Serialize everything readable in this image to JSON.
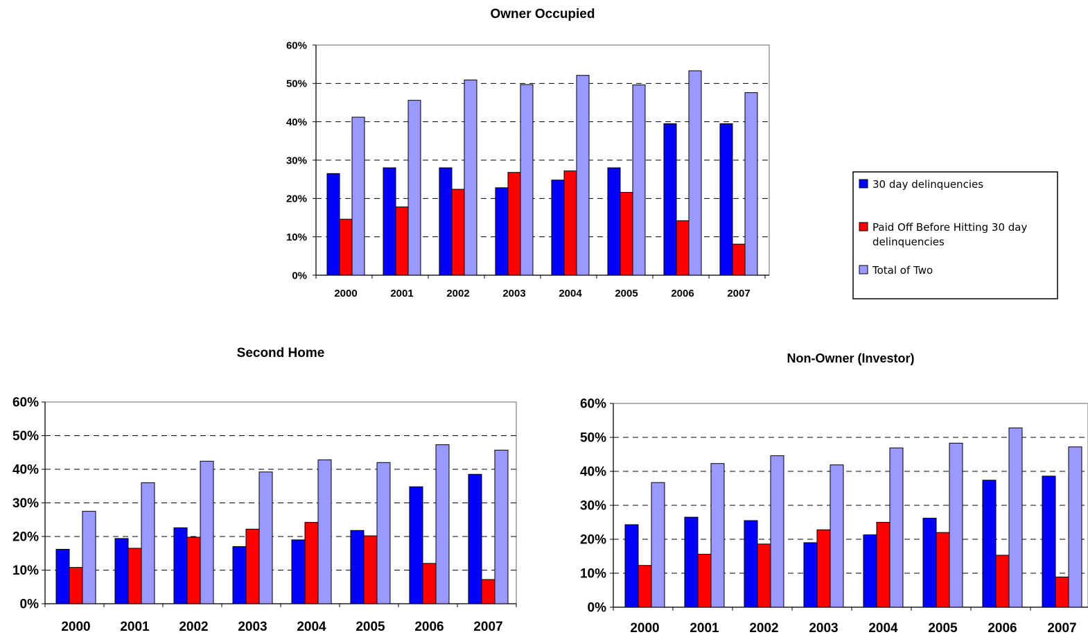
{
  "chart_data": [
    {
      "type": "bar",
      "title": "Owner Occupied",
      "categories": [
        "2000",
        "2001",
        "2002",
        "2003",
        "2004",
        "2005",
        "2006",
        "2007"
      ],
      "series": [
        {
          "name": "30 day delinquencies",
          "values": [
            26.5,
            28.0,
            28.0,
            22.8,
            24.8,
            28.0,
            39.5,
            39.5
          ]
        },
        {
          "name": "Paid Off Before Hitting 30 day delinquencies",
          "values": [
            14.6,
            17.8,
            22.4,
            26.8,
            27.2,
            21.6,
            14.2,
            8.1
          ]
        },
        {
          "name": "Total of Two",
          "values": [
            41.2,
            45.6,
            50.9,
            49.7,
            52.1,
            49.6,
            53.3,
            47.6
          ]
        }
      ],
      "yticks": [
        "0%",
        "10%",
        "20%",
        "30%",
        "40%",
        "50%",
        "60%"
      ],
      "ylim": [
        0,
        60
      ],
      "grid": "dashed horizontal"
    },
    {
      "type": "bar",
      "title": "Second Home",
      "categories": [
        "2000",
        "2001",
        "2002",
        "2003",
        "2004",
        "2005",
        "2006",
        "2007"
      ],
      "series": [
        {
          "name": "30 day delinquencies",
          "values": [
            16.2,
            19.4,
            22.6,
            17.0,
            19.0,
            21.8,
            34.8,
            38.5
          ]
        },
        {
          "name": "Paid Off Before Hitting 30 day delinquencies",
          "values": [
            10.8,
            16.5,
            19.8,
            22.2,
            24.2,
            20.2,
            12.0,
            7.2
          ]
        },
        {
          "name": "Total of Two",
          "values": [
            27.5,
            36.0,
            42.4,
            39.2,
            42.8,
            42.0,
            47.3,
            45.7
          ]
        }
      ],
      "yticks": [
        "0%",
        "10%",
        "20%",
        "30%",
        "40%",
        "50%",
        "60%"
      ],
      "ylim": [
        0,
        60
      ],
      "grid": "dashed horizontal"
    },
    {
      "type": "bar",
      "title": "Non-Owner (Investor)",
      "categories": [
        "2000",
        "2001",
        "2002",
        "2003",
        "2004",
        "2005",
        "2006",
        "2007"
      ],
      "series": [
        {
          "name": "30 day delinquencies",
          "values": [
            24.3,
            26.5,
            25.5,
            19.0,
            21.3,
            26.2,
            37.4,
            38.6
          ]
        },
        {
          "name": "Paid Off Before Hitting 30 day delinquencies",
          "values": [
            12.3,
            15.6,
            18.6,
            22.8,
            25.0,
            22.0,
            15.3,
            8.9
          ]
        },
        {
          "name": "Total of Two",
          "values": [
            36.7,
            42.3,
            44.6,
            41.9,
            46.9,
            48.3,
            52.8,
            47.2
          ]
        }
      ],
      "yticks": [
        "0%",
        "10%",
        "20%",
        "30%",
        "40%",
        "50%",
        "60%"
      ],
      "ylim": [
        0,
        60
      ],
      "grid": "dashed horizontal"
    }
  ],
  "legend": {
    "items": [
      {
        "label_lines": [
          "30 day delinquencies"
        ],
        "color": "#0000ff"
      },
      {
        "label_lines": [
          "Paid Off Before Hitting 30 day",
          "delinquencies"
        ],
        "color": "#ff0000"
      },
      {
        "label_lines": [
          "Total of Two"
        ],
        "color": "#9999ff"
      }
    ]
  },
  "colors": {
    "series": [
      "#0000ff",
      "#ff0000",
      "#9999ff"
    ],
    "gridline": "#000000",
    "axis": "#808080"
  }
}
